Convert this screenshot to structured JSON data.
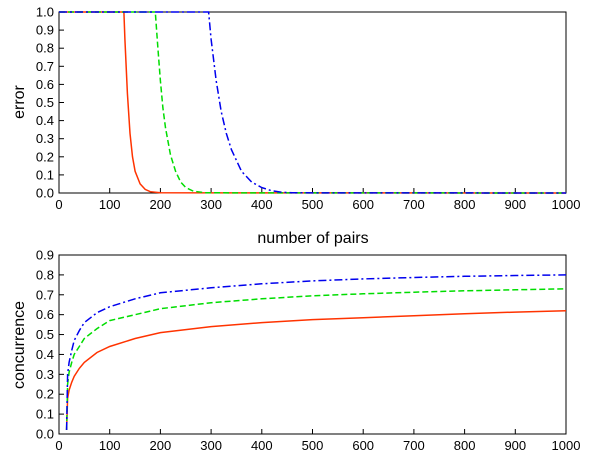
{
  "chart_data": [
    {
      "type": "line",
      "title": "",
      "xlabel": "number of pairs",
      "ylabel": "error",
      "xlim": [
        0,
        1000
      ],
      "ylim": [
        0,
        1
      ],
      "xticks": [
        "0",
        "100",
        "200",
        "300",
        "400",
        "500",
        "600",
        "700",
        "800",
        "900",
        "1000"
      ],
      "yticks": [
        "0.0",
        "0.1",
        "0.2",
        "0.3",
        "0.4",
        "0.5",
        "0.6",
        "0.7",
        "0.8",
        "0.9",
        "1.0"
      ],
      "grid": false,
      "legend": "none",
      "series": [
        {
          "color": "#ff3300",
          "dash": "solid",
          "x": [
            0,
            128,
            130,
            135,
            140,
            145,
            150,
            160,
            170,
            180,
            200,
            1000
          ],
          "y": [
            1,
            1,
            0.85,
            0.55,
            0.33,
            0.2,
            0.12,
            0.05,
            0.02,
            0.007,
            0.001,
            0
          ]
        },
        {
          "color": "#00dd00",
          "dash": "dashed",
          "x": [
            0,
            190,
            195,
            200,
            205,
            210,
            220,
            230,
            240,
            250,
            265,
            290,
            1000
          ],
          "y": [
            1,
            1,
            0.8,
            0.62,
            0.47,
            0.36,
            0.21,
            0.12,
            0.06,
            0.03,
            0.01,
            0.001,
            0
          ]
        },
        {
          "color": "#0000ee",
          "dash": "dashdot",
          "x": [
            0,
            295,
            300,
            310,
            320,
            330,
            340,
            360,
            380,
            400,
            420,
            440,
            460,
            1000
          ],
          "y": [
            1,
            1,
            0.85,
            0.62,
            0.45,
            0.33,
            0.24,
            0.12,
            0.06,
            0.03,
            0.012,
            0.004,
            0.001,
            0
          ]
        }
      ]
    },
    {
      "type": "line",
      "title": "",
      "xlabel": "",
      "ylabel": "concurrence",
      "xlim": [
        0,
        1000
      ],
      "ylim": [
        0,
        0.9
      ],
      "xticks": [
        "0",
        "100",
        "200",
        "300",
        "400",
        "500",
        "600",
        "700",
        "800",
        "900",
        "1000"
      ],
      "yticks": [
        "0.0",
        "0.1",
        "0.2",
        "0.3",
        "0.4",
        "0.5",
        "0.6",
        "0.7",
        "0.8",
        "0.9"
      ],
      "grid": false,
      "legend": "none",
      "series": [
        {
          "color": "#ff3300",
          "dash": "solid",
          "x": [
            15,
            17,
            20,
            25,
            30,
            40,
            50,
            75,
            100,
            150,
            200,
            300,
            400,
            500,
            600,
            700,
            800,
            900,
            1000
          ],
          "y": [
            0.02,
            0.18,
            0.22,
            0.26,
            0.29,
            0.33,
            0.36,
            0.41,
            0.44,
            0.48,
            0.51,
            0.54,
            0.56,
            0.575,
            0.585,
            0.595,
            0.605,
            0.613,
            0.62
          ]
        },
        {
          "color": "#00dd00",
          "dash": "dashed",
          "x": [
            15,
            17,
            20,
            25,
            30,
            40,
            50,
            75,
            100,
            150,
            200,
            300,
            400,
            500,
            600,
            700,
            800,
            900,
            1000
          ],
          "y": [
            0.02,
            0.25,
            0.31,
            0.36,
            0.4,
            0.44,
            0.48,
            0.53,
            0.57,
            0.6,
            0.63,
            0.66,
            0.68,
            0.695,
            0.705,
            0.713,
            0.72,
            0.725,
            0.73
          ]
        },
        {
          "color": "#0000ee",
          "dash": "dashdot",
          "x": [
            15,
            17,
            20,
            25,
            30,
            40,
            50,
            75,
            100,
            150,
            200,
            300,
            400,
            500,
            600,
            700,
            800,
            900,
            1000
          ],
          "y": [
            0.02,
            0.3,
            0.36,
            0.42,
            0.47,
            0.52,
            0.56,
            0.61,
            0.64,
            0.68,
            0.71,
            0.735,
            0.755,
            0.77,
            0.78,
            0.787,
            0.793,
            0.797,
            0.8
          ]
        }
      ]
    }
  ]
}
